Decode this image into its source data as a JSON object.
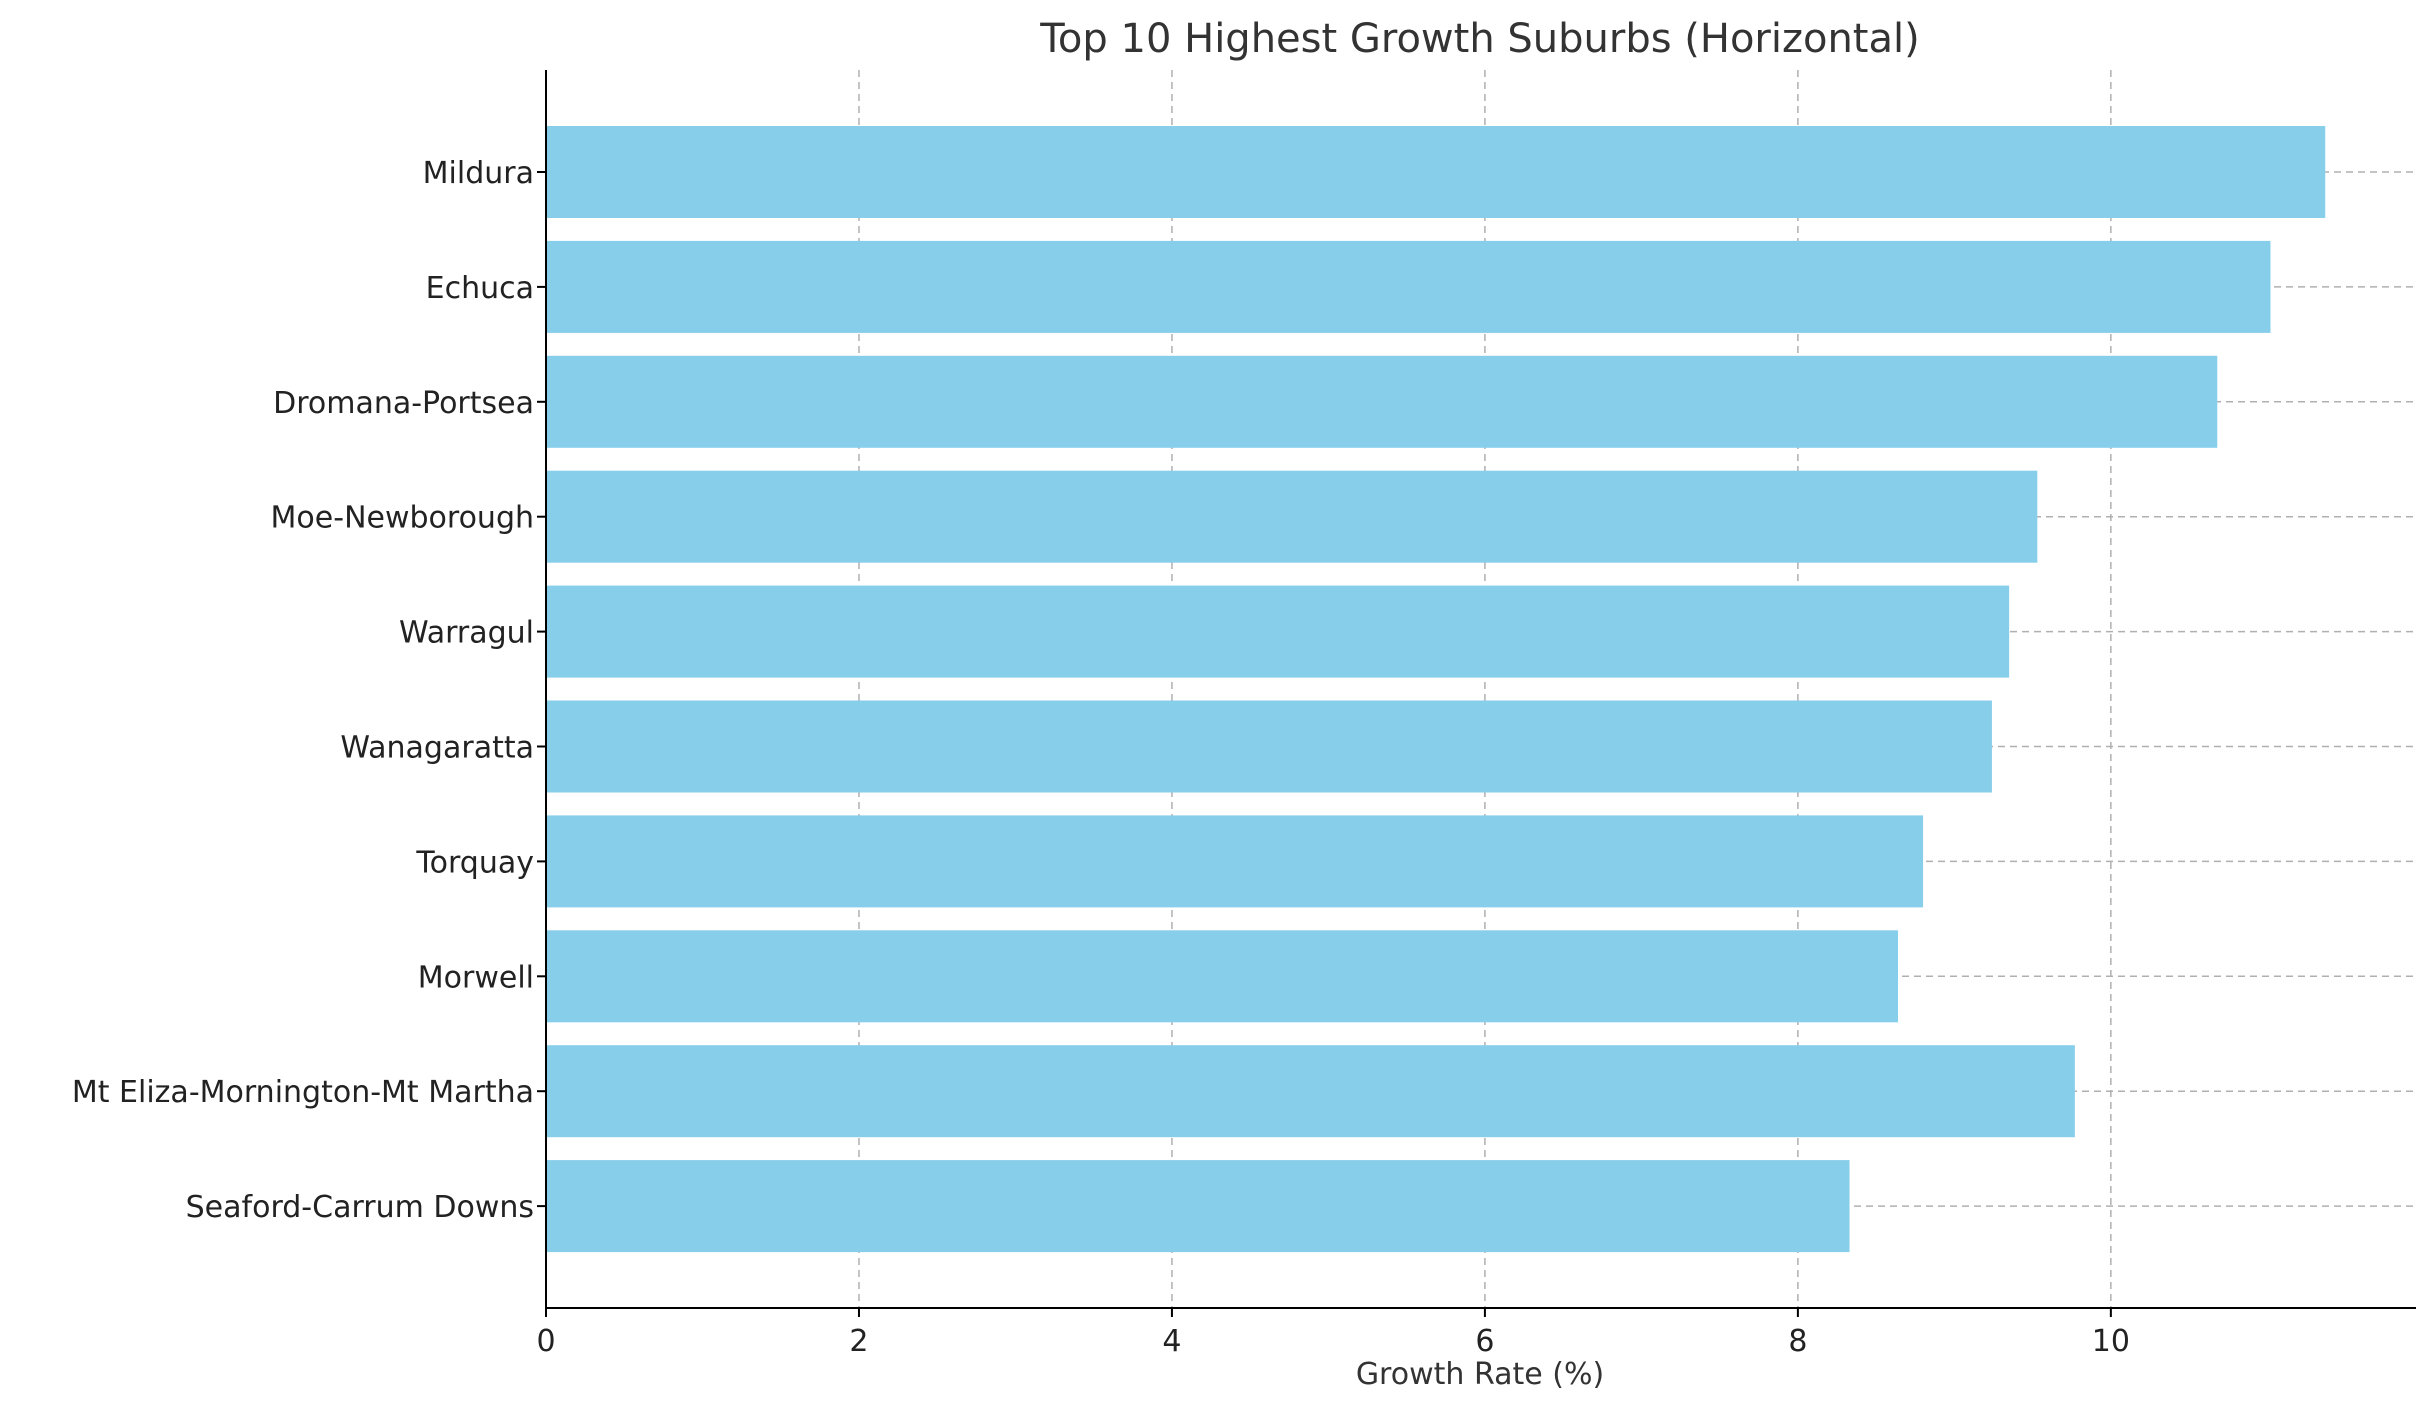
{
  "chart_data": {
    "type": "bar",
    "orientation": "horizontal",
    "title": "Top 10 Highest Growth Suburbs (Horizontal)",
    "xlabel": "Growth Rate (%)",
    "ylabel": "",
    "xlim": [
      0,
      11.95
    ],
    "xticks": [
      0,
      2,
      4,
      6,
      8,
      10
    ],
    "grid": true,
    "legend": "none",
    "bar_color": "#87CEEB",
    "categories": [
      "Mildura",
      "Echuca",
      "Dromana-Portsea",
      "Moe-Newborough",
      "Warragul",
      "Wanagaratta",
      "Torquay",
      "Morwell",
      "Mt Eliza-Mornington-Mt Martha",
      "Seaford-Carrum Downs"
    ],
    "values": [
      11.37,
      11.02,
      10.68,
      9.53,
      9.35,
      9.24,
      8.8,
      8.64,
      9.77,
      8.33
    ]
  }
}
